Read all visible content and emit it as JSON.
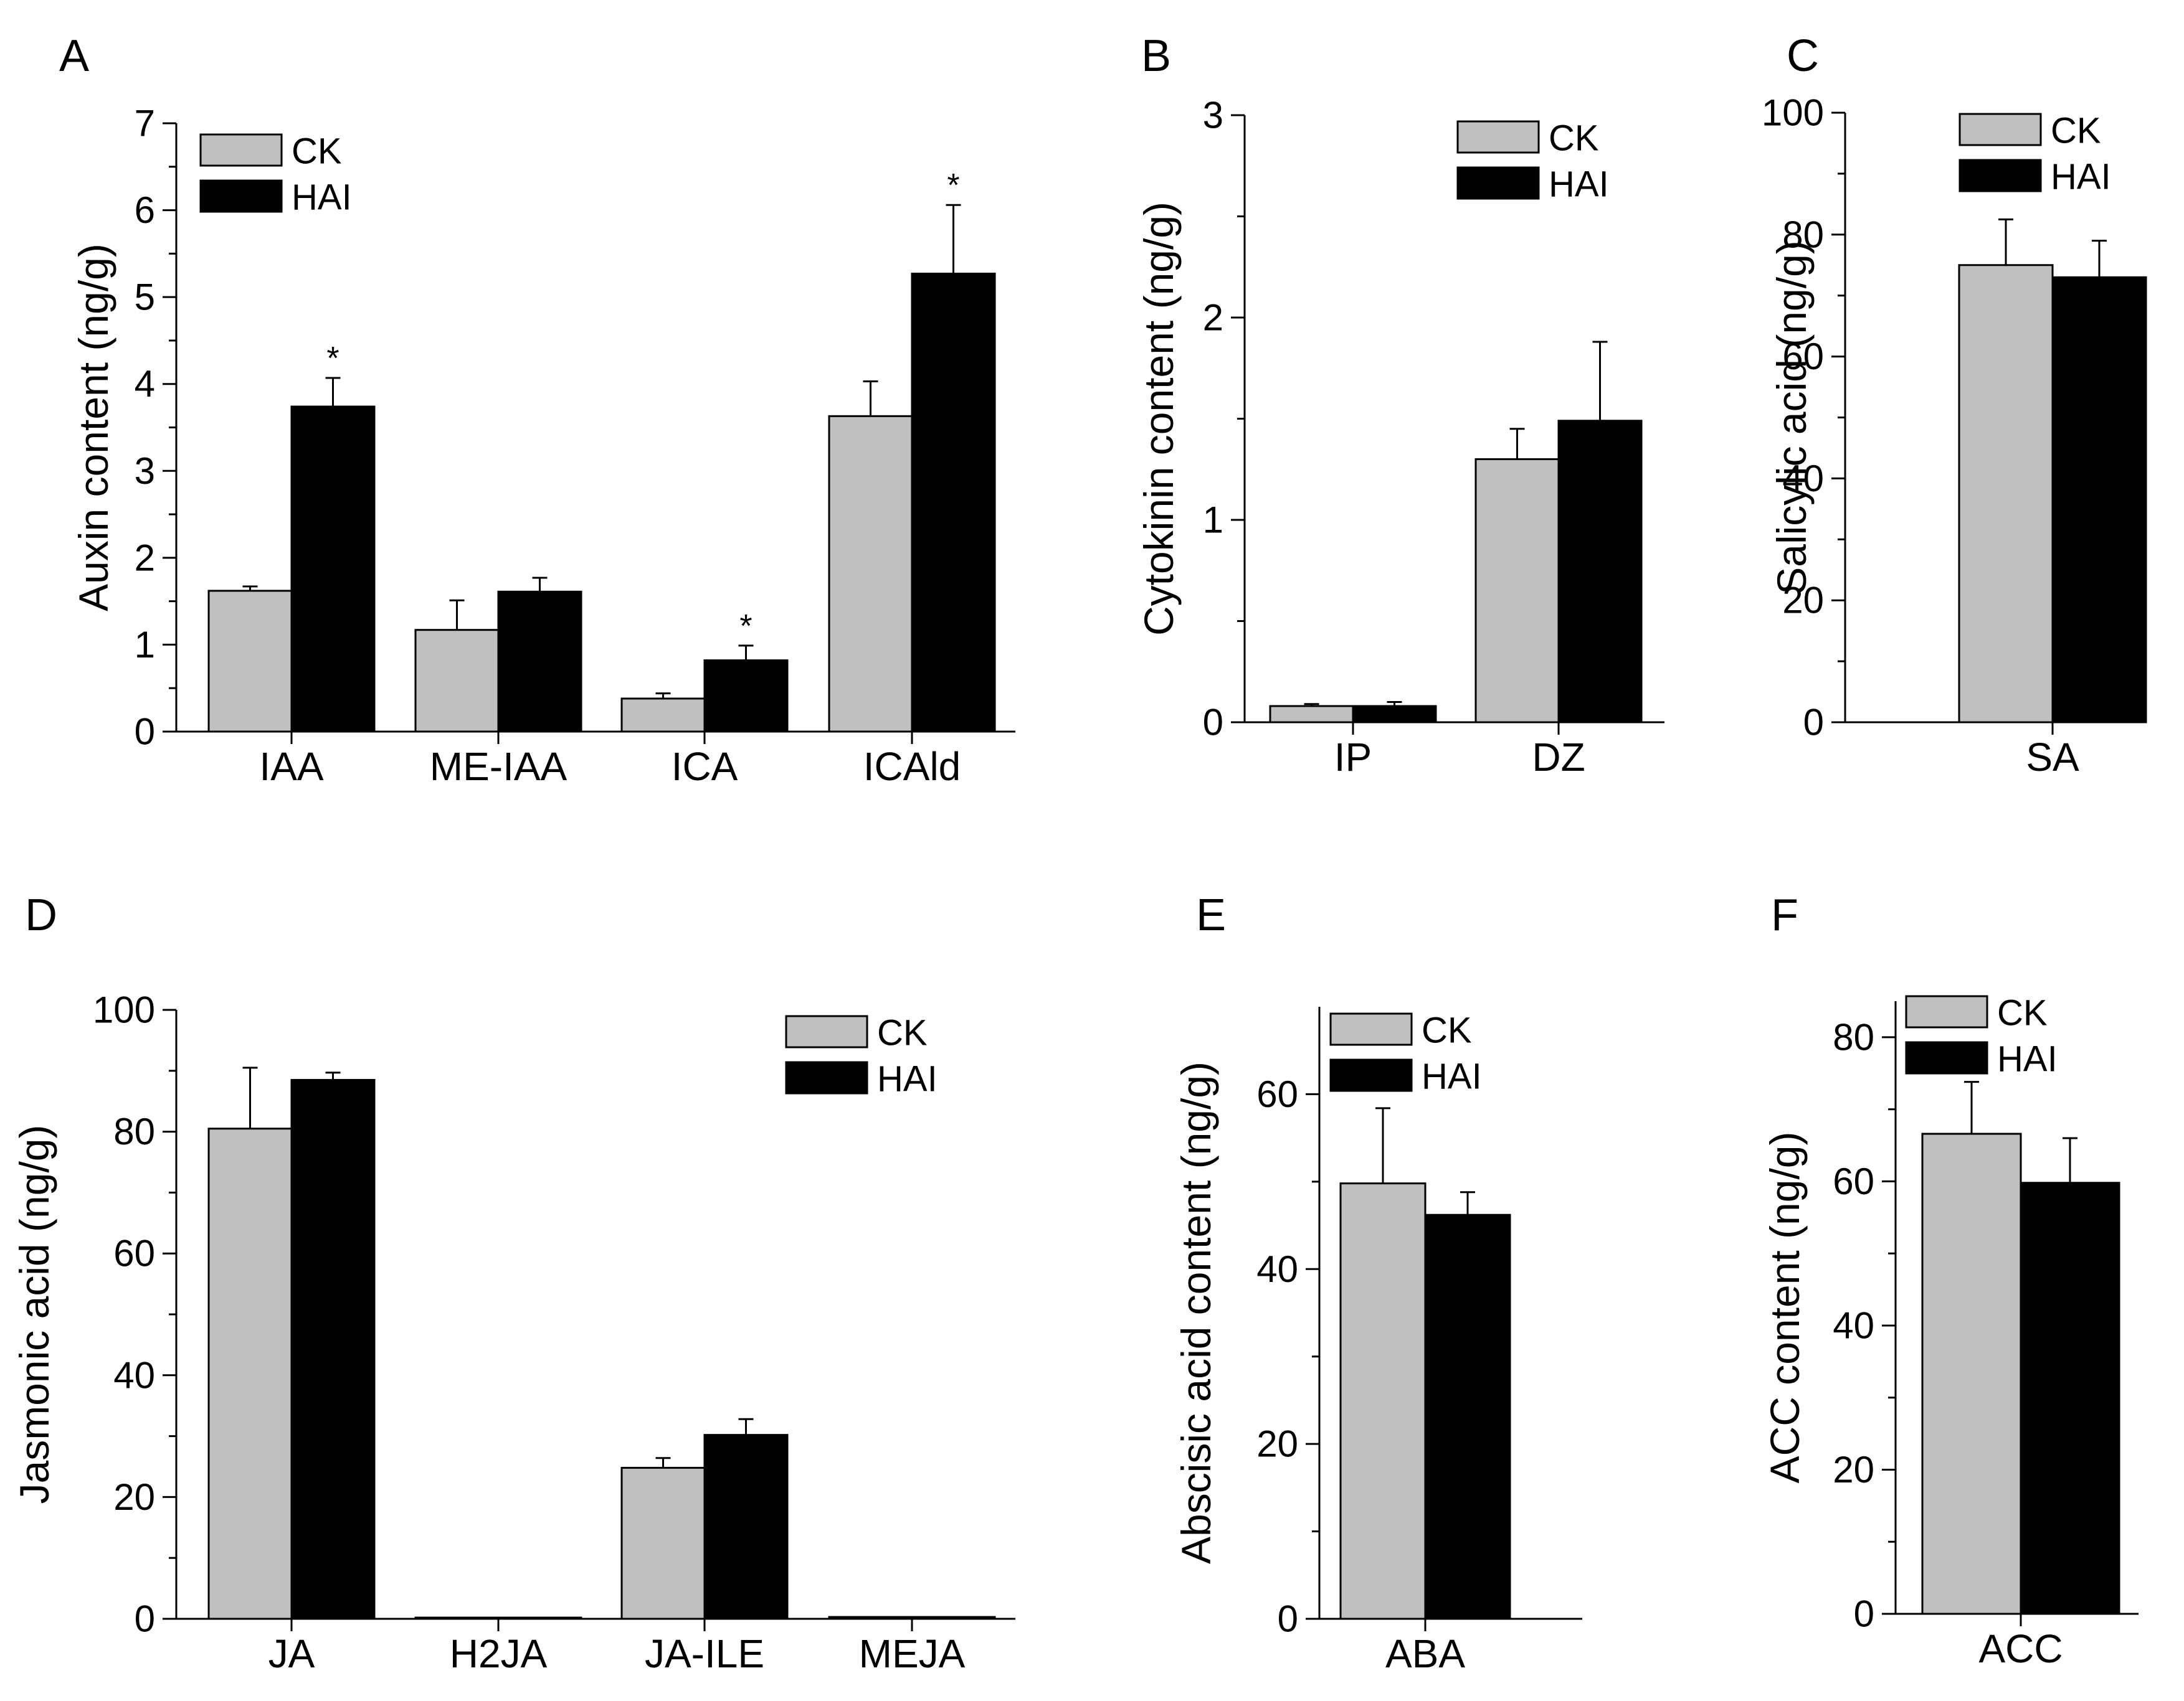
{
  "colors": {
    "CK": "#c0c0c0",
    "HAI": "#000000",
    "axis": "#000000"
  },
  "legend": [
    "CK",
    "HAI"
  ],
  "chart_data": [
    {
      "panel": "A",
      "type": "bar",
      "ylabel": "Auxin content (ng/g)",
      "ylim": [
        0,
        7
      ],
      "yticks": [
        0,
        1,
        2,
        3,
        4,
        5,
        6,
        7
      ],
      "categories": [
        "IAA",
        "ME-IAA",
        "ICA",
        "ICAld"
      ],
      "series": [
        {
          "name": "CK",
          "values": [
            1.62,
            1.17,
            0.38,
            3.63
          ],
          "errors": [
            0.05,
            0.34,
            0.06,
            0.4
          ]
        },
        {
          "name": "HAI",
          "values": [
            3.74,
            1.61,
            0.82,
            5.27
          ],
          "errors": [
            0.33,
            0.16,
            0.17,
            0.79
          ]
        }
      ],
      "significance": [
        {
          "category": "IAA",
          "series": "HAI",
          "label": "*"
        },
        {
          "category": "ICA",
          "series": "HAI",
          "label": "*"
        },
        {
          "category": "ICAld",
          "series": "HAI",
          "label": "*"
        }
      ],
      "legend_position": "top-left"
    },
    {
      "panel": "B",
      "type": "bar",
      "ylabel": "Cytokinin content (ng/g)",
      "ylim": [
        0,
        3
      ],
      "yticks": [
        0,
        1,
        2,
        3
      ],
      "categories": [
        "IP",
        "DZ"
      ],
      "series": [
        {
          "name": "CK",
          "values": [
            0.08,
            1.3
          ],
          "errors": [
            0.01,
            0.15
          ]
        },
        {
          "name": "HAI",
          "values": [
            0.08,
            1.49
          ],
          "errors": [
            0.02,
            0.39
          ]
        }
      ],
      "significance": [],
      "legend_position": "top-right"
    },
    {
      "panel": "C",
      "type": "bar",
      "ylabel": "Salicylic acid (ng/g)",
      "ylim": [
        0,
        100
      ],
      "yticks": [
        0,
        20,
        40,
        60,
        80,
        100
      ],
      "categories": [
        "SA"
      ],
      "series": [
        {
          "name": "CK",
          "values": [
            75.0
          ],
          "errors": [
            7.5
          ]
        },
        {
          "name": "HAI",
          "values": [
            73.0
          ],
          "errors": [
            6.0
          ]
        }
      ],
      "significance": [],
      "legend_position": "top"
    },
    {
      "panel": "D",
      "type": "bar",
      "ylabel": "Jasmonic acid (ng/g)",
      "ylim": [
        0,
        100
      ],
      "yticks": [
        0,
        20,
        40,
        60,
        80,
        100
      ],
      "categories": [
        "JA",
        "H2JA",
        "JA-ILE",
        "MEJA"
      ],
      "series": [
        {
          "name": "CK",
          "values": [
            80.5,
            0.2,
            24.8,
            0.3
          ],
          "errors": [
            10.0,
            0.05,
            1.6,
            0.05
          ]
        },
        {
          "name": "HAI",
          "values": [
            88.5,
            0.2,
            30.2,
            0.3
          ],
          "errors": [
            1.2,
            0.05,
            2.6,
            0.05
          ]
        }
      ],
      "significance": [],
      "legend_position": "top-right"
    },
    {
      "panel": "E",
      "type": "bar",
      "ylabel": "Abscisic acid content (ng/g)",
      "ylim": [
        0,
        70
      ],
      "yticks": [
        0,
        20,
        40,
        60
      ],
      "categories": [
        "ABA"
      ],
      "series": [
        {
          "name": "CK",
          "values": [
            49.8
          ],
          "errors": [
            8.6
          ]
        },
        {
          "name": "HAI",
          "values": [
            46.2
          ],
          "errors": [
            2.6
          ]
        }
      ],
      "significance": [],
      "legend_position": "top"
    },
    {
      "panel": "F",
      "type": "bar",
      "ylabel": "ACC content (ng/g)",
      "ylim": [
        0,
        85
      ],
      "yticks": [
        0,
        20,
        40,
        60,
        80
      ],
      "categories": [
        "ACC"
      ],
      "series": [
        {
          "name": "CK",
          "values": [
            66.6
          ],
          "errors": [
            7.2
          ]
        },
        {
          "name": "HAI",
          "values": [
            59.8
          ],
          "errors": [
            6.2
          ]
        }
      ],
      "significance": [],
      "legend_position": "top"
    }
  ]
}
